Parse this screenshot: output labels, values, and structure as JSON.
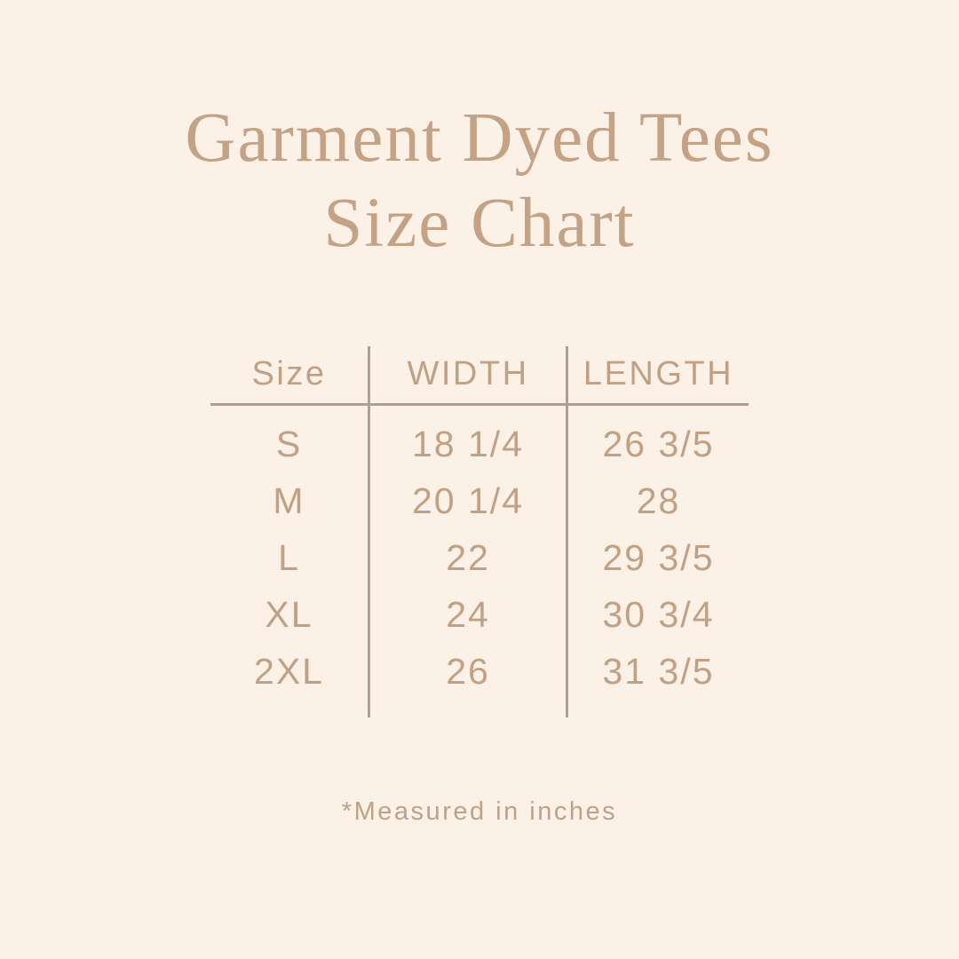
{
  "page": {
    "background_color": "#fcf1e6",
    "title_color": "#c3a286",
    "table_text_color": "#c0a185",
    "divider_line_color": "#aca094",
    "title_line1": "Garment Dyed Tees",
    "title_line2": "Size Chart",
    "footnote": "*Measured in inches"
  },
  "chart_data": {
    "type": "table",
    "title": "Garment Dyed Tees Size Chart",
    "columns": [
      "Size",
      "WIDTH",
      "LENGTH"
    ],
    "rows": [
      [
        "S",
        "18 1/4",
        "26 3/5"
      ],
      [
        "M",
        "20 1/4",
        "28"
      ],
      [
        "L",
        "22",
        "29 3/5"
      ],
      [
        "XL",
        "24",
        "30 3/4"
      ],
      [
        "2XL",
        "26",
        "31 3/5"
      ]
    ],
    "footnote": "*Measured in inches",
    "units": "inches"
  }
}
